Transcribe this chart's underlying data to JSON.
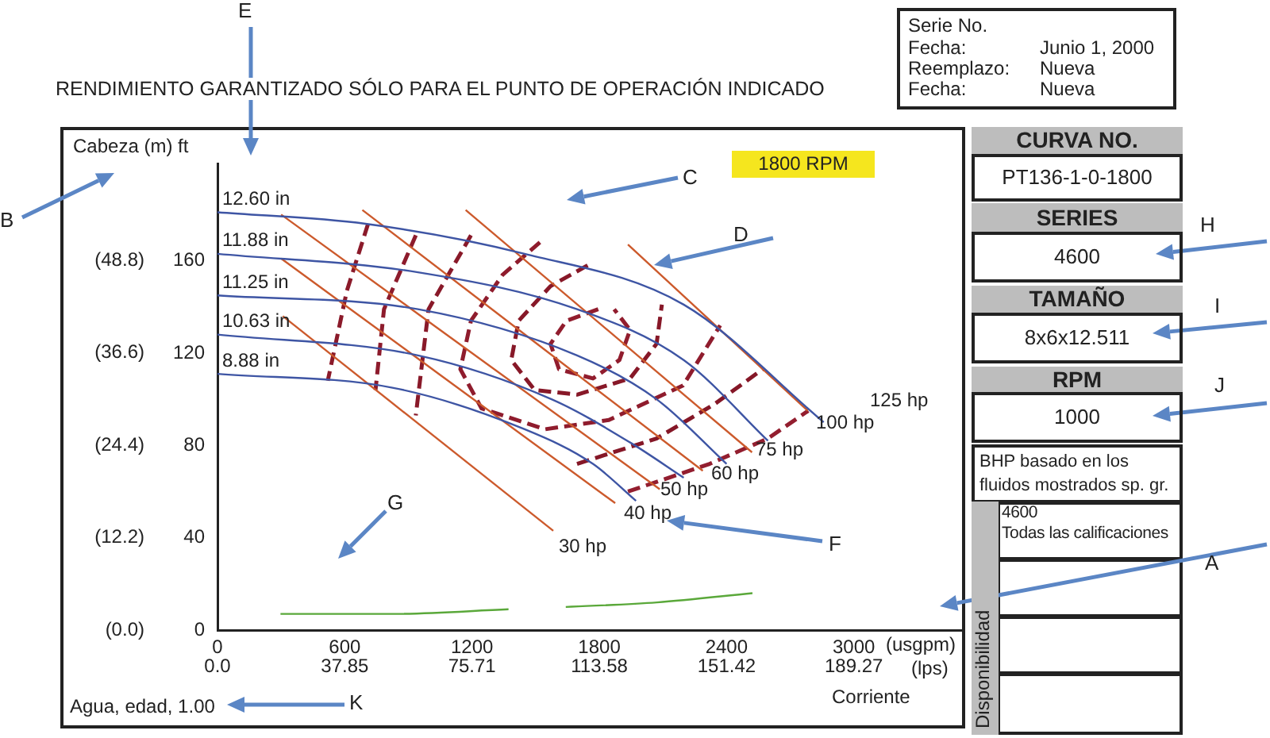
{
  "chart_data": {
    "type": "line",
    "title": "RENDIMIENTO GARANTIZADO SÓLO PARA EL PUNTO DE OPERACIÓN INDICADO",
    "xlabel": "(usgpm)",
    "x2label": "(lps)",
    "xlim": [
      0,
      3525
    ],
    "xticks": [
      0,
      600,
      1200,
      1800,
      2400,
      3000
    ],
    "x2lim": [
      0,
      222.39
    ],
    "x2ticks": [
      {
        "value": 0,
        "label": "0.0"
      },
      37.85,
      75.71,
      113.58,
      151.42,
      189.27
    ],
    "ylim": [
      0,
      202
    ],
    "yticks": [
      0,
      40,
      80,
      120,
      160
    ],
    "y2lim": [
      0,
      61.57
    ],
    "y2ticks": [
      {
        "value": 0,
        "label": "(0.0)"
      },
      {
        "value": 12.2,
        "label": "(12.2)"
      },
      {
        "value": 24.4,
        "label": "(24.4)"
      },
      {
        "value": 36.6,
        "label": "(36.6)"
      },
      {
        "value": 48.8,
        "label": "(48.8)"
      }
    ],
    "marker": "none",
    "line_style": "solid",
    "series": [
      {
        "name": "12.60 in",
        "color": "#3e55a4",
        "x": [
          0,
          698,
          1448,
          2198,
          2858
        ],
        "values": [
          181,
          176,
          163,
          141,
          90
        ]
      },
      {
        "name": "11.88 in",
        "color": "#3e55a4",
        "x": [
          0,
          945,
          1695,
          2198,
          2595
        ],
        "values": [
          163,
          155,
          139,
          117,
          82
        ]
      },
      {
        "name": "11.25 in",
        "color": "#3e55a4",
        "x": [
          0,
          945,
          1695,
          2070,
          2400
        ],
        "values": [
          145,
          139,
          119,
          100,
          72
        ]
      },
      {
        "name": "10.63 in",
        "color": "#3e55a4",
        "x": [
          0,
          945,
          1575,
          1950,
          2198
        ],
        "values": [
          128,
          119,
          100,
          81,
          66
        ]
      },
      {
        "name": "8.88 in",
        "color": "#3e55a4",
        "x": [
          0,
          825,
          1448,
          1770,
          1973
        ],
        "values": [
          111,
          105,
          87,
          72,
          56
        ]
      },
      {
        "color": "#cc5a2c",
        "x": [
          308,
          1583
        ],
        "values": [
          136,
          43
        ]
      },
      {
        "color": "#cc5a2c",
        "x": [
          300,
          1875
        ],
        "values": [
          161,
          55
        ]
      },
      {
        "color": "#cc5a2c",
        "x": [
          300,
          2085
        ],
        "values": [
          180,
          61
        ]
      },
      {
        "color": "#cc5a2c",
        "x": [
          683,
          2288
        ],
        "values": [
          182,
          69
        ]
      },
      {
        "color": "#cc5a2c",
        "x": [
          1170,
          2520
        ],
        "values": [
          182,
          77
        ]
      },
      {
        "color": "#cc5a2c",
        "x": [
          1935,
          2783
        ],
        "values": [
          167,
          95
        ]
      },
      {
        "color": "#8b1a2a",
        "line_style": "dashed",
        "x": [
          710,
          610,
          520
        ],
        "values": [
          176,
          147,
          108
        ]
      },
      {
        "color": "#8d1b2c",
        "line_style": "dashed",
        "x": [
          935,
          785,
          745
        ],
        "values": [
          171,
          139,
          104
        ]
      },
      {
        "color": "#891929",
        "line_style": "dashed",
        "x": [
          1195,
          995,
          935
        ],
        "values": [
          171,
          139,
          93
        ]
      },
      {
        "color": "#8f1c2d",
        "line_style": "dashed",
        "x": [
          1520,
          1345,
          1195,
          1145,
          1245,
          1545,
          1845,
          2195,
          2370
        ],
        "values": [
          168,
          154,
          134,
          113,
          96,
          87,
          91,
          106,
          132
        ]
      },
      {
        "color": "#871828",
        "line_style": "dashed",
        "x": [
          1745,
          1570,
          1420,
          1385,
          1495,
          1695,
          1945,
          2070,
          2095
        ],
        "values": [
          158,
          149,
          134,
          117,
          104,
          102,
          109,
          124,
          141
        ]
      },
      {
        "color": "#911d2e",
        "line_style": "dashed",
        "x": [
          1795,
          1645,
          1570,
          1610,
          1770,
          1895,
          1945,
          1870
        ],
        "values": [
          139,
          134,
          124,
          113,
          109,
          117,
          130,
          139
        ]
      },
      {
        "color": "#851727",
        "line_style": "dashed",
        "x": [
          1695,
          2070,
          2345,
          2570
        ],
        "values": [
          72,
          83,
          98,
          113
        ]
      },
      {
        "color": "#931e2f",
        "line_style": "dashed",
        "x": [
          1935,
          2320,
          2595,
          2785
        ],
        "values": [
          60,
          72,
          83,
          95
        ]
      },
      {
        "color": "#5aa83a",
        "x": [
          297,
          822,
          1372
        ],
        "values": [
          7,
          7,
          9
        ]
      },
      {
        "color": "#5aa83a",
        "x": [
          1642,
          2072,
          2522
        ],
        "values": [
          10,
          12,
          16
        ]
      }
    ],
    "annotations": [
      "1800 RPM",
      "A",
      "B",
      "C",
      "D",
      "E",
      "F",
      "G",
      "H",
      "I",
      "J",
      "K",
      "Agua, edad, 1.00",
      "Corriente",
      "Serie No.",
      "Fecha:",
      "Reemplazo:",
      "Fecha:",
      "Junio 1, 2000",
      "Nueva",
      "Nueva",
      "CURVA NO.",
      "PT136-1-0-1800",
      "SERIES",
      "4600",
      "TAMAÑO",
      "8x6x12.511",
      "RPM",
      "1000",
      "BHP basado en los fluidos mostrados sp. gr.",
      "Disponibilidad",
      "4600",
      "Todas las calificaciones",
      "30 hp",
      "40 hp",
      "50 hp",
      "60 hp",
      "75 hp",
      "100 hp",
      "125 hp",
      "Cabeza (m) ft"
    ]
  }
}
